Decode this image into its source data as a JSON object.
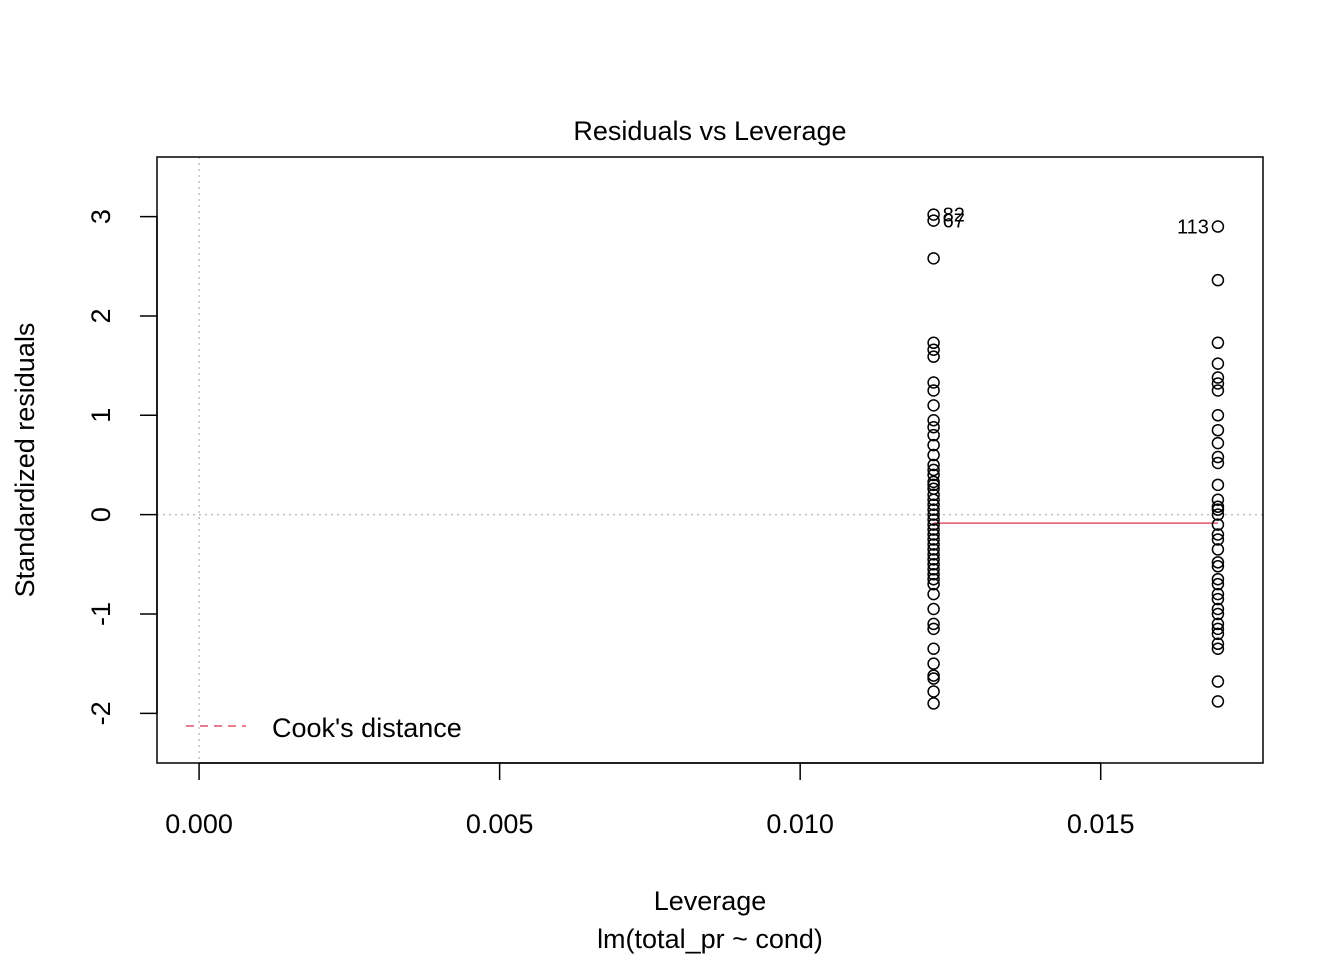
{
  "chart_data": {
    "type": "scatter",
    "title": "Residuals vs Leverage",
    "xlabel": "Leverage",
    "sublabel": "lm(total_pr ~ cond)",
    "ylabel": "Standardized residuals",
    "xlim": [
      -0.0007,
      0.0177
    ],
    "ylim": [
      -2.5,
      3.6
    ],
    "x_ticks": [
      {
        "value": 0,
        "label": "0.000"
      },
      {
        "value": 0.005,
        "label": "0.005"
      },
      {
        "value": 0.01,
        "label": "0.010"
      },
      {
        "value": 0.015,
        "label": "0.015"
      }
    ],
    "y_ticks": [
      {
        "value": -2,
        "label": "-2"
      },
      {
        "value": -1,
        "label": "-1"
      },
      {
        "value": 0,
        "label": "0"
      },
      {
        "value": 1,
        "label": "1"
      },
      {
        "value": 2,
        "label": "2"
      },
      {
        "value": 3,
        "label": "3"
      }
    ],
    "grid": false,
    "reference_lines": {
      "x": 0,
      "y": 0,
      "style": "dotted",
      "color": "#bebebe"
    },
    "points_color": "#000000",
    "series": [
      {
        "x": 0.01222,
        "values": [
          3.02,
          2.96,
          2.58,
          1.73,
          1.66,
          1.59,
          1.33,
          1.25,
          1.1,
          0.95,
          0.88,
          0.8,
          0.7,
          0.6,
          0.5,
          0.45,
          0.4,
          0.33,
          0.3,
          0.26,
          0.2,
          0.15,
          0.1,
          0.05,
          0.0,
          -0.05,
          -0.1,
          -0.15,
          -0.2,
          -0.25,
          -0.3,
          -0.35,
          -0.4,
          -0.45,
          -0.5,
          -0.55,
          -0.6,
          -0.65,
          -0.7,
          -0.8,
          -0.95,
          -1.1,
          -1.15,
          -1.35,
          -1.5,
          -1.62,
          -1.65,
          -1.78,
          -1.9
        ]
      },
      {
        "x": 0.01695,
        "values": [
          2.9,
          2.36,
          1.73,
          1.52,
          1.38,
          1.32,
          1.25,
          1.0,
          0.85,
          0.72,
          0.58,
          0.52,
          0.3,
          0.15,
          0.08,
          0.05,
          0.0,
          -0.1,
          -0.2,
          -0.25,
          -0.35,
          -0.48,
          -0.52,
          -0.65,
          -0.7,
          -0.8,
          -0.85,
          -0.95,
          -1.0,
          -1.1,
          -1.15,
          -1.2,
          -1.3,
          -1.35,
          -1.68,
          -1.88
        ]
      }
    ],
    "point_labels": [
      {
        "text": "82",
        "x": 0.01222,
        "y": 3.02,
        "side": "right"
      },
      {
        "text": "67",
        "x": 0.01222,
        "y": 2.96,
        "side": "right"
      },
      {
        "text": "113",
        "x": 0.01695,
        "y": 2.9,
        "side": "left"
      }
    ],
    "smooth_line": {
      "color": "#df536b",
      "x": [
        0.01222,
        0.01695
      ],
      "y": [
        -0.085,
        -0.085
      ]
    },
    "legend": {
      "label": "Cook's distance",
      "position": "bottom-left",
      "line_color": "#df536b",
      "line_style": "dashed"
    }
  }
}
